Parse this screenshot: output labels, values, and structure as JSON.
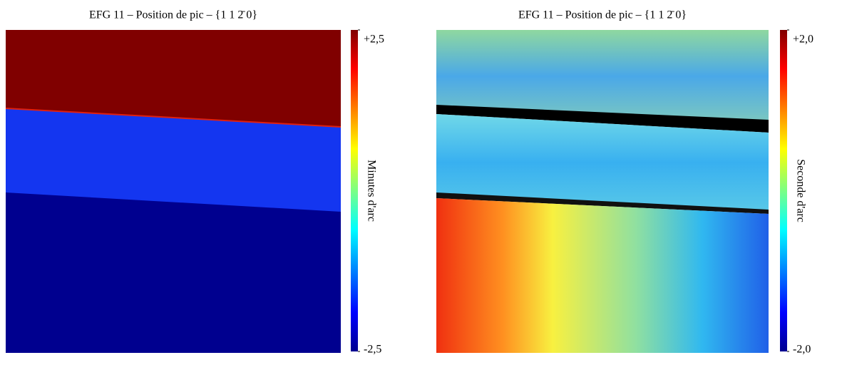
{
  "chart_data": [
    {
      "type": "heatmap",
      "title": "EFG 11 – Position de pic – {1 1 2̄ 0}",
      "colorbar_label": "Minutes d'arc",
      "clim": [
        -2.5,
        2.5
      ],
      "cticks": [
        {
          "value": 2.5,
          "label": "+2,5"
        },
        {
          "value": -2.5,
          "label": "-2,5"
        }
      ]
    },
    {
      "type": "heatmap",
      "title": "EFG 11 – Position de pic – {1 1 2̄ 0}",
      "colorbar_label": "Seconde d'arc",
      "clim": [
        -2.0,
        2.0
      ],
      "cticks": [
        {
          "value": 2.0,
          "label": "+2,0"
        },
        {
          "value": -2.0,
          "label": "-2,0"
        }
      ]
    }
  ]
}
